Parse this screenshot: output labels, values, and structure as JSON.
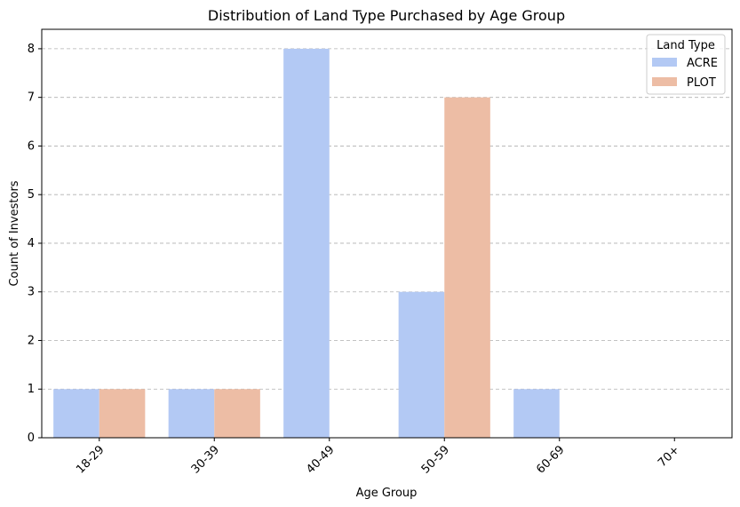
{
  "chart_data": {
    "type": "bar",
    "title": "Distribution of Land Type Purchased by Age Group",
    "xlabel": "Age Group",
    "ylabel": "Count of Investors",
    "categories": [
      "18-29",
      "30-39",
      "40-49",
      "50-59",
      "60-69",
      "70+"
    ],
    "series": [
      {
        "name": "ACRE",
        "values": [
          1,
          1,
          8,
          3,
          1,
          0
        ],
        "color": "#b3c9f4"
      },
      {
        "name": "PLOT",
        "values": [
          1,
          1,
          0,
          7,
          0,
          0
        ],
        "color": "#edbda5"
      }
    ],
    "ylim": [
      0,
      8.4
    ],
    "yticks": [
      0,
      1,
      2,
      3,
      4,
      5,
      6,
      7,
      8
    ],
    "grid": "horizontal-dashed",
    "legend": {
      "title": "Land Type",
      "placement": "top-right"
    },
    "xtick_rotation": 45
  }
}
